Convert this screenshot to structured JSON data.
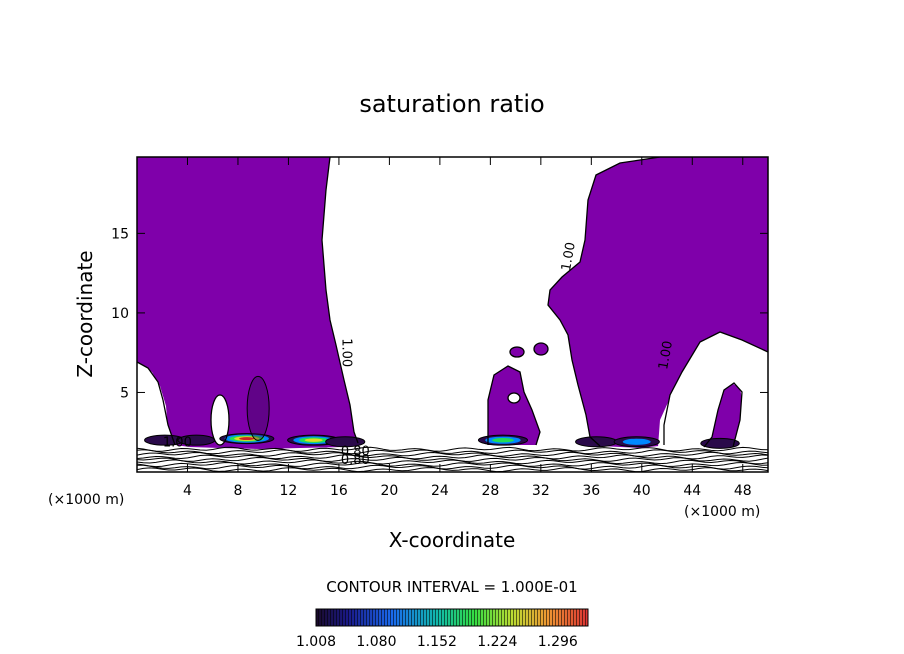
{
  "chart_data": {
    "type": "contour",
    "title": "saturation ratio",
    "xlabel": "X-coordinate",
    "ylabel": "Z-coordinate",
    "x_unit": "(×1000 m)",
    "y_unit": "(×1000 m)",
    "xlim": [
      0,
      50
    ],
    "ylim": [
      0,
      19.8
    ],
    "x_ticks": [
      "4",
      "8",
      "12",
      "16",
      "20",
      "24",
      "28",
      "32",
      "36",
      "40",
      "44",
      "48"
    ],
    "y_ticks": [
      "5",
      "10",
      "15"
    ],
    "contour_interval_text": "CONTOUR INTERVAL = 1.000E-01",
    "colorbar_labels": [
      "1.008",
      "1.080",
      "1.152",
      "1.224",
      "1.296"
    ],
    "colorbar_range": [
      1.008,
      1.332
    ],
    "contour_line_labels": [
      {
        "text": "1.00",
        "x": 3.2,
        "y": 1.6,
        "angle": 0
      },
      {
        "text": "1.00",
        "x": 16.3,
        "y": 7.5,
        "angle": 90
      },
      {
        "text": "1.00",
        "x": 34.5,
        "y": 13.5,
        "angle": -80
      },
      {
        "text": "1.00",
        "x": 42.2,
        "y": 7.3,
        "angle": -80
      },
      {
        "text": "0.80",
        "x": 17.3,
        "y": 1.05,
        "angle": 0
      },
      {
        "text": "0.80",
        "x": 17.3,
        "y": 0.5,
        "angle": 0
      }
    ],
    "supersaturated_color": "#7f00aa",
    "colors": {
      "low": "#2a0a4a",
      "mid_low": "#0088ff",
      "mid": "#22dd55",
      "mid_high": "#dddd22",
      "high": "#cc2222"
    },
    "cores": [
      {
        "x": 2.2,
        "z": 2.0,
        "peak": 1.08
      },
      {
        "x": 4.7,
        "z": 2.0,
        "peak": 1.02
      },
      {
        "x": 8.7,
        "z": 2.1,
        "peak": 1.3
      },
      {
        "x": 9.6,
        "z": 4.0,
        "peak": 1.03
      },
      {
        "x": 14.0,
        "z": 2.0,
        "peak": 1.27
      },
      {
        "x": 16.5,
        "z": 1.9,
        "peak": 1.06
      },
      {
        "x": 29.0,
        "z": 2.0,
        "peak": 1.22
      },
      {
        "x": 36.4,
        "z": 1.9,
        "peak": 1.1
      },
      {
        "x": 39.6,
        "z": 1.9,
        "peak": 1.16
      },
      {
        "x": 46.2,
        "z": 1.8,
        "peak": 1.05
      }
    ]
  }
}
